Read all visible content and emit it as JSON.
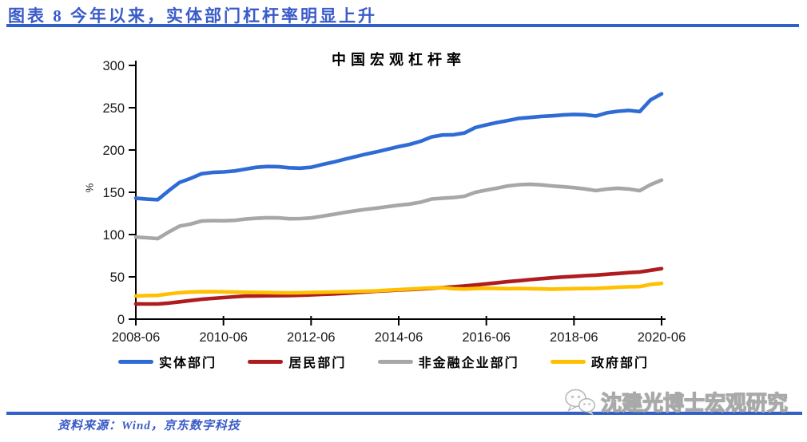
{
  "header": {
    "title": "图表 8 今年以来，实体部门杠杆率明显上升"
  },
  "chart_data": {
    "type": "line",
    "title": "中国宏观杠杆率",
    "xlabel": "",
    "ylabel": "%",
    "ylim": [
      0,
      300
    ],
    "yticks": [
      0,
      50,
      100,
      150,
      200,
      250,
      300
    ],
    "xtick_labels": [
      "2008-06",
      "2010-06",
      "2012-06",
      "2014-06",
      "2016-06",
      "2018-06",
      "2020-06"
    ],
    "x_start": "2008-06",
    "x_end": "2020-06",
    "x_frequency": "quarterly",
    "grid": false,
    "legend_position": "bottom",
    "series": [
      {
        "name": "实体部门",
        "key": "real-economy",
        "color": "#2e6bd4",
        "values": [
          143.0,
          141.9,
          141.2,
          151.8,
          161.7,
          166.4,
          171.9,
          173.5,
          174.1,
          175.2,
          177.4,
          179.5,
          180.5,
          180.3,
          179.0,
          178.5,
          179.5,
          182.7,
          185.6,
          188.9,
          192.0,
          195.1,
          197.8,
          200.9,
          204.0,
          206.6,
          210.3,
          215.5,
          217.7,
          218.0,
          220.1,
          226.6,
          229.7,
          232.5,
          234.9,
          237.5,
          238.5,
          239.7,
          240.4,
          241.4,
          242.1,
          241.7,
          240.2,
          244.0,
          245.8,
          246.8,
          245.4,
          259.3,
          266.4
        ]
      },
      {
        "name": "居民部门",
        "key": "household",
        "color": "#ae1c1f",
        "values": [
          18.0,
          17.9,
          17.9,
          19.0,
          20.5,
          22.0,
          23.5,
          24.5,
          25.5,
          26.4,
          27.3,
          27.4,
          27.6,
          27.7,
          27.8,
          28.2,
          28.7,
          29.2,
          29.7,
          30.5,
          31.3,
          32.2,
          33.0,
          33.7,
          34.4,
          35.0,
          35.7,
          36.5,
          37.4,
          38.2,
          39.2,
          40.4,
          41.7,
          43.0,
          44.4,
          45.5,
          46.7,
          47.8,
          48.9,
          49.8,
          50.6,
          51.4,
          52.1,
          53.0,
          54.0,
          55.0,
          55.8,
          57.7,
          59.7
        ]
      },
      {
        "name": "非金融企业部门",
        "key": "nonfinancial-corporate",
        "color": "#a7a7a7",
        "values": [
          97.0,
          96.2,
          95.2,
          103.0,
          110.0,
          112.4,
          116.0,
          116.5,
          116.3,
          116.8,
          118.3,
          119.2,
          119.9,
          119.7,
          118.7,
          118.9,
          119.6,
          121.7,
          123.8,
          126.0,
          128.0,
          129.8,
          131.3,
          133.0,
          134.7,
          136.0,
          138.3,
          142.0,
          143.0,
          143.8,
          145.3,
          150.0,
          152.5,
          155.0,
          157.5,
          159.0,
          159.5,
          158.8,
          157.5,
          156.5,
          155.5,
          154.0,
          152.0,
          153.8,
          154.8,
          153.9,
          151.9,
          159.1,
          164.4
        ]
      },
      {
        "name": "政府部门",
        "key": "government",
        "color": "#ffc000",
        "values": [
          27.5,
          27.8,
          28.1,
          29.8,
          31.2,
          32.0,
          32.4,
          32.5,
          32.3,
          32.0,
          31.8,
          31.6,
          31.4,
          31.2,
          31.0,
          31.2,
          31.5,
          31.8,
          32.1,
          32.4,
          32.7,
          33.1,
          33.5,
          34.2,
          34.9,
          35.6,
          36.3,
          37.0,
          37.3,
          36.0,
          35.6,
          36.2,
          36.5,
          36.2,
          36.0,
          36.2,
          36.0,
          35.8,
          35.5,
          35.8,
          36.0,
          36.2,
          36.4,
          37.0,
          37.7,
          38.2,
          38.5,
          41.0,
          42.3
        ]
      }
    ]
  },
  "footer": {
    "source": "资料来源：Wind，京东数字科技",
    "watermark": "沈建光博士宏观研究"
  },
  "colors": {
    "accent_blue": "#3060c8",
    "title_text_blue": "#3a5bc8",
    "axis_black": "#000000"
  }
}
